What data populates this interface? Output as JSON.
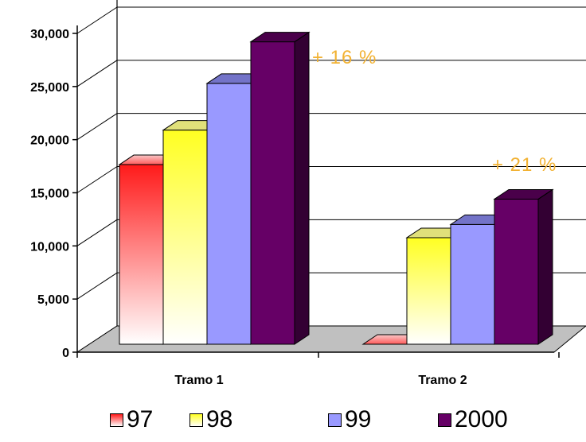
{
  "chart_data": {
    "type": "bar",
    "categories": [
      "Tramo 1",
      "Tramo 2"
    ],
    "series": [
      {
        "name": "97",
        "values": [
          17700,
          0
        ],
        "color": "#ff2020"
      },
      {
        "name": "98",
        "values": [
          21100,
          10500
        ],
        "color": "#ffff33"
      },
      {
        "name": "99",
        "values": [
          25700,
          11800
        ],
        "color": "#9999ff"
      },
      {
        "name": "2000",
        "values": [
          29800,
          14300
        ],
        "color": "#660066"
      }
    ],
    "yticks": [
      "0",
      "5,000",
      "10,000",
      "15,000",
      "20,000",
      "25,000",
      "30,000"
    ],
    "ylim": [
      0,
      30000
    ],
    "annotations": [
      {
        "text": "+ 16 %",
        "category": "Tramo 1"
      },
      {
        "text": "+ 21 %",
        "category": "Tramo 2"
      }
    ],
    "legend_position": "bottom",
    "grid": true,
    "three_d": true
  }
}
